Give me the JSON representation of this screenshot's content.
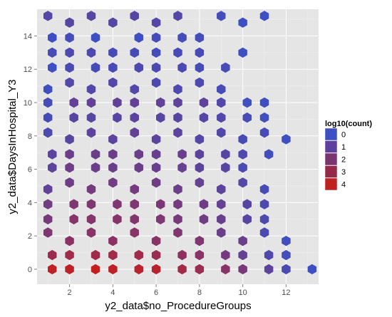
{
  "chart_data": {
    "type": "hexbin",
    "xlabel": "y2_data$no_ProcedureGroups",
    "ylabel": "y2_data$DaysInHospital_Y3",
    "xlim": [
      0.5,
      13.5
    ],
    "ylim": [
      -0.9,
      15.6
    ],
    "x_ticks": [
      2,
      4,
      6,
      8,
      10,
      12
    ],
    "y_ticks": [
      0,
      2,
      4,
      6,
      8,
      10,
      12,
      14
    ],
    "grid": true,
    "legend": {
      "title": "log10(count)",
      "placement": "right",
      "levels": [
        {
          "label": "0",
          "color": "#3D4FC2"
        },
        {
          "label": "1",
          "color": "#5E3F9E"
        },
        {
          "label": "2",
          "color": "#78356E"
        },
        {
          "label": "3",
          "color": "#942A47"
        },
        {
          "label": "4",
          "color": "#BF2020"
        }
      ]
    },
    "color_low": "#3D4FC2",
    "color_high": "#C41E1E",
    "cells": [
      {
        "x": 1.0,
        "y": 15.2,
        "v": 0.7
      },
      {
        "x": 2.0,
        "y": 14.8,
        "v": 0.8
      },
      {
        "x": 3.0,
        "y": 15.2,
        "v": 0.8
      },
      {
        "x": 4.0,
        "y": 14.8,
        "v": 0.8
      },
      {
        "x": 5.0,
        "y": 15.2,
        "v": 0.8
      },
      {
        "x": 6.0,
        "y": 14.8,
        "v": 0.7
      },
      {
        "x": 7.0,
        "y": 15.2,
        "v": 0.7
      },
      {
        "x": 9.0,
        "y": 15.2,
        "v": 0.2
      },
      {
        "x": 10.0,
        "y": 14.8,
        "v": 0.0
      },
      {
        "x": 11.0,
        "y": 15.2,
        "v": 0.0
      },
      {
        "x": 1.2,
        "y": 13.9,
        "v": 0.0
      },
      {
        "x": 2.0,
        "y": 13.9,
        "v": 0.2
      },
      {
        "x": 3.2,
        "y": 13.9,
        "v": 0.0
      },
      {
        "x": 5.2,
        "y": 13.9,
        "v": 0.0
      },
      {
        "x": 6.0,
        "y": 13.9,
        "v": 0.2
      },
      {
        "x": 7.2,
        "y": 13.9,
        "v": 0.2
      },
      {
        "x": 8.0,
        "y": 13.9,
        "v": 0.2
      },
      {
        "x": 1.2,
        "y": 13.0,
        "v": 0.3
      },
      {
        "x": 2.0,
        "y": 13.0,
        "v": 0.5
      },
      {
        "x": 3.0,
        "y": 13.0,
        "v": 0.5
      },
      {
        "x": 4.0,
        "y": 13.0,
        "v": 0.3
      },
      {
        "x": 5.0,
        "y": 13.0,
        "v": 0.3
      },
      {
        "x": 6.0,
        "y": 13.0,
        "v": 0.2
      },
      {
        "x": 7.0,
        "y": 13.0,
        "v": 0.3
      },
      {
        "x": 8.0,
        "y": 13.0,
        "v": 0.3
      },
      {
        "x": 10.0,
        "y": 13.0,
        "v": 0.0
      },
      {
        "x": 1.2,
        "y": 12.1,
        "v": 0.0
      },
      {
        "x": 2.0,
        "y": 12.1,
        "v": 0.4
      },
      {
        "x": 3.2,
        "y": 12.1,
        "v": 0.3
      },
      {
        "x": 4.0,
        "y": 12.1,
        "v": 0.3
      },
      {
        "x": 5.2,
        "y": 12.1,
        "v": 0.5
      },
      {
        "x": 6.0,
        "y": 12.1,
        "v": 0.4
      },
      {
        "x": 7.2,
        "y": 12.1,
        "v": 0.4
      },
      {
        "x": 8.0,
        "y": 12.1,
        "v": 0.3
      },
      {
        "x": 9.2,
        "y": 12.1,
        "v": 0.3
      },
      {
        "x": 2.0,
        "y": 11.2,
        "v": 0.6
      },
      {
        "x": 4.0,
        "y": 11.2,
        "v": 0.6
      },
      {
        "x": 6.0,
        "y": 11.2,
        "v": 0.5
      },
      {
        "x": 8.0,
        "y": 11.2,
        "v": 0.5
      },
      {
        "x": 1.0,
        "y": 10.8,
        "v": 0.1
      },
      {
        "x": 3.0,
        "y": 10.8,
        "v": 0.6
      },
      {
        "x": 5.0,
        "y": 10.8,
        "v": 0.6
      },
      {
        "x": 7.0,
        "y": 10.8,
        "v": 0.5
      },
      {
        "x": 9.0,
        "y": 10.8,
        "v": 0.3
      },
      {
        "x": 1.0,
        "y": 10.0,
        "v": 0.3
      },
      {
        "x": 2.2,
        "y": 10.0,
        "v": 1.1
      },
      {
        "x": 3.0,
        "y": 10.0,
        "v": 1.1
      },
      {
        "x": 4.2,
        "y": 10.0,
        "v": 1.1
      },
      {
        "x": 5.0,
        "y": 10.0,
        "v": 1.1
      },
      {
        "x": 6.2,
        "y": 10.0,
        "v": 1.1
      },
      {
        "x": 7.0,
        "y": 10.0,
        "v": 1.0
      },
      {
        "x": 8.2,
        "y": 10.0,
        "v": 1.0
      },
      {
        "x": 9.0,
        "y": 10.0,
        "v": 0.6
      },
      {
        "x": 10.2,
        "y": 10.0,
        "v": 0.1
      },
      {
        "x": 11.0,
        "y": 10.0,
        "v": 0.1
      },
      {
        "x": 1.0,
        "y": 9.1,
        "v": 0.3
      },
      {
        "x": 2.2,
        "y": 9.1,
        "v": 0.8
      },
      {
        "x": 3.0,
        "y": 9.1,
        "v": 0.8
      },
      {
        "x": 4.2,
        "y": 9.1,
        "v": 0.8
      },
      {
        "x": 5.0,
        "y": 9.1,
        "v": 0.9
      },
      {
        "x": 6.2,
        "y": 9.1,
        "v": 0.8
      },
      {
        "x": 7.0,
        "y": 9.1,
        "v": 0.8
      },
      {
        "x": 8.2,
        "y": 9.1,
        "v": 0.7
      },
      {
        "x": 9.0,
        "y": 9.1,
        "v": 0.6
      },
      {
        "x": 10.2,
        "y": 9.1,
        "v": 0.3
      },
      {
        "x": 11.0,
        "y": 9.1,
        "v": 0.1
      },
      {
        "x": 1.0,
        "y": 8.2,
        "v": 0.5
      },
      {
        "x": 3.0,
        "y": 8.2,
        "v": 0.9
      },
      {
        "x": 5.0,
        "y": 8.2,
        "v": 1.1
      },
      {
        "x": 7.0,
        "y": 8.2,
        "v": 0.9
      },
      {
        "x": 9.0,
        "y": 8.2,
        "v": 0.6
      },
      {
        "x": 11.0,
        "y": 8.2,
        "v": 0.3
      },
      {
        "x": 2.0,
        "y": 7.8,
        "v": 0.8
      },
      {
        "x": 4.0,
        "y": 7.8,
        "v": 0.9
      },
      {
        "x": 6.0,
        "y": 7.8,
        "v": 0.9
      },
      {
        "x": 8.0,
        "y": 7.8,
        "v": 0.7
      },
      {
        "x": 10.0,
        "y": 7.8,
        "v": 0.3
      },
      {
        "x": 12.0,
        "y": 7.8,
        "v": 0.0
      },
      {
        "x": 1.2,
        "y": 6.9,
        "v": 0.9
      },
      {
        "x": 2.0,
        "y": 6.9,
        "v": 1.4
      },
      {
        "x": 3.2,
        "y": 6.9,
        "v": 1.4
      },
      {
        "x": 4.0,
        "y": 6.9,
        "v": 1.4
      },
      {
        "x": 5.2,
        "y": 6.9,
        "v": 1.4
      },
      {
        "x": 6.0,
        "y": 6.9,
        "v": 1.3
      },
      {
        "x": 7.2,
        "y": 6.9,
        "v": 1.3
      },
      {
        "x": 8.0,
        "y": 6.9,
        "v": 1.0
      },
      {
        "x": 9.2,
        "y": 6.9,
        "v": 0.8
      },
      {
        "x": 10.0,
        "y": 6.9,
        "v": 0.5
      },
      {
        "x": 11.2,
        "y": 6.9,
        "v": 0.1
      },
      {
        "x": 1.2,
        "y": 6.1,
        "v": 1.0
      },
      {
        "x": 2.0,
        "y": 6.1,
        "v": 1.5
      },
      {
        "x": 3.2,
        "y": 6.1,
        "v": 1.4
      },
      {
        "x": 4.0,
        "y": 6.1,
        "v": 1.4
      },
      {
        "x": 5.2,
        "y": 6.1,
        "v": 1.4
      },
      {
        "x": 6.0,
        "y": 6.1,
        "v": 1.3
      },
      {
        "x": 7.2,
        "y": 6.1,
        "v": 1.2
      },
      {
        "x": 8.0,
        "y": 6.1,
        "v": 1.0
      },
      {
        "x": 9.2,
        "y": 6.1,
        "v": 0.8
      },
      {
        "x": 10.0,
        "y": 6.1,
        "v": 0.4
      },
      {
        "x": 2.0,
        "y": 5.2,
        "v": 1.5
      },
      {
        "x": 4.0,
        "y": 5.2,
        "v": 1.6
      },
      {
        "x": 6.0,
        "y": 5.2,
        "v": 1.5
      },
      {
        "x": 8.0,
        "y": 5.2,
        "v": 1.2
      },
      {
        "x": 10.0,
        "y": 5.2,
        "v": 0.7
      },
      {
        "x": 1.0,
        "y": 4.8,
        "v": 1.1
      },
      {
        "x": 3.0,
        "y": 4.8,
        "v": 1.7
      },
      {
        "x": 5.0,
        "y": 4.8,
        "v": 1.7
      },
      {
        "x": 7.0,
        "y": 4.8,
        "v": 1.4
      },
      {
        "x": 9.0,
        "y": 4.8,
        "v": 1.0
      },
      {
        "x": 11.0,
        "y": 4.8,
        "v": 0.3
      },
      {
        "x": 1.0,
        "y": 3.9,
        "v": 1.6
      },
      {
        "x": 2.2,
        "y": 3.9,
        "v": 2.0
      },
      {
        "x": 3.0,
        "y": 3.9,
        "v": 2.0
      },
      {
        "x": 4.2,
        "y": 3.9,
        "v": 2.0
      },
      {
        "x": 5.0,
        "y": 3.9,
        "v": 2.0
      },
      {
        "x": 6.2,
        "y": 3.9,
        "v": 1.9
      },
      {
        "x": 7.0,
        "y": 3.9,
        "v": 1.7
      },
      {
        "x": 8.2,
        "y": 3.9,
        "v": 1.5
      },
      {
        "x": 9.0,
        "y": 3.9,
        "v": 1.2
      },
      {
        "x": 10.2,
        "y": 3.9,
        "v": 0.8
      },
      {
        "x": 11.0,
        "y": 3.9,
        "v": 0.5
      },
      {
        "x": 1.0,
        "y": 3.0,
        "v": 1.8
      },
      {
        "x": 2.2,
        "y": 3.0,
        "v": 2.2
      },
      {
        "x": 3.0,
        "y": 3.0,
        "v": 2.2
      },
      {
        "x": 4.2,
        "y": 3.0,
        "v": 2.2
      },
      {
        "x": 5.0,
        "y": 3.0,
        "v": 2.1
      },
      {
        "x": 6.2,
        "y": 3.0,
        "v": 2.0
      },
      {
        "x": 7.0,
        "y": 3.0,
        "v": 1.8
      },
      {
        "x": 8.2,
        "y": 3.0,
        "v": 1.6
      },
      {
        "x": 9.0,
        "y": 3.0,
        "v": 1.3
      },
      {
        "x": 10.2,
        "y": 3.0,
        "v": 0.8
      },
      {
        "x": 11.0,
        "y": 3.0,
        "v": 0.5
      },
      {
        "x": 1.0,
        "y": 2.2,
        "v": 2.0
      },
      {
        "x": 3.0,
        "y": 2.2,
        "v": 2.3
      },
      {
        "x": 5.0,
        "y": 2.2,
        "v": 2.3
      },
      {
        "x": 7.0,
        "y": 2.2,
        "v": 2.0
      },
      {
        "x": 9.0,
        "y": 2.2,
        "v": 1.4
      },
      {
        "x": 11.0,
        "y": 2.2,
        "v": 0.4
      },
      {
        "x": 2.0,
        "y": 1.7,
        "v": 2.4
      },
      {
        "x": 4.0,
        "y": 1.7,
        "v": 2.4
      },
      {
        "x": 6.0,
        "y": 1.7,
        "v": 2.3
      },
      {
        "x": 8.0,
        "y": 1.7,
        "v": 2.0
      },
      {
        "x": 10.0,
        "y": 1.7,
        "v": 1.4
      },
      {
        "x": 12.0,
        "y": 1.7,
        "v": 0.1
      },
      {
        "x": 1.2,
        "y": 0.85,
        "v": 2.9
      },
      {
        "x": 2.0,
        "y": 0.85,
        "v": 3.0
      },
      {
        "x": 3.2,
        "y": 0.85,
        "v": 3.0
      },
      {
        "x": 4.0,
        "y": 0.85,
        "v": 3.0
      },
      {
        "x": 5.2,
        "y": 0.85,
        "v": 3.0
      },
      {
        "x": 6.0,
        "y": 0.85,
        "v": 2.8
      },
      {
        "x": 7.2,
        "y": 0.85,
        "v": 2.5
      },
      {
        "x": 8.0,
        "y": 0.85,
        "v": 2.3
      },
      {
        "x": 9.2,
        "y": 0.85,
        "v": 1.7
      },
      {
        "x": 10.0,
        "y": 0.85,
        "v": 1.2
      },
      {
        "x": 11.2,
        "y": 0.85,
        "v": 0.6
      },
      {
        "x": 12.0,
        "y": 0.85,
        "v": 0.2
      },
      {
        "x": 1.2,
        "y": 0.0,
        "v": 3.9
      },
      {
        "x": 2.0,
        "y": 0.0,
        "v": 3.9
      },
      {
        "x": 3.2,
        "y": 0.0,
        "v": 4.1
      },
      {
        "x": 4.0,
        "y": 0.0,
        "v": 3.9
      },
      {
        "x": 5.2,
        "y": 0.0,
        "v": 3.7
      },
      {
        "x": 6.0,
        "y": 0.0,
        "v": 3.7
      },
      {
        "x": 7.2,
        "y": 0.0,
        "v": 3.1
      },
      {
        "x": 8.0,
        "y": 0.0,
        "v": 2.8
      },
      {
        "x": 9.2,
        "y": 0.0,
        "v": 2.3
      },
      {
        "x": 10.0,
        "y": 0.0,
        "v": 1.8
      },
      {
        "x": 11.2,
        "y": 0.0,
        "v": 1.0
      },
      {
        "x": 12.0,
        "y": 0.0,
        "v": 0.4
      },
      {
        "x": 13.2,
        "y": 0.0,
        "v": 0.0
      }
    ]
  }
}
